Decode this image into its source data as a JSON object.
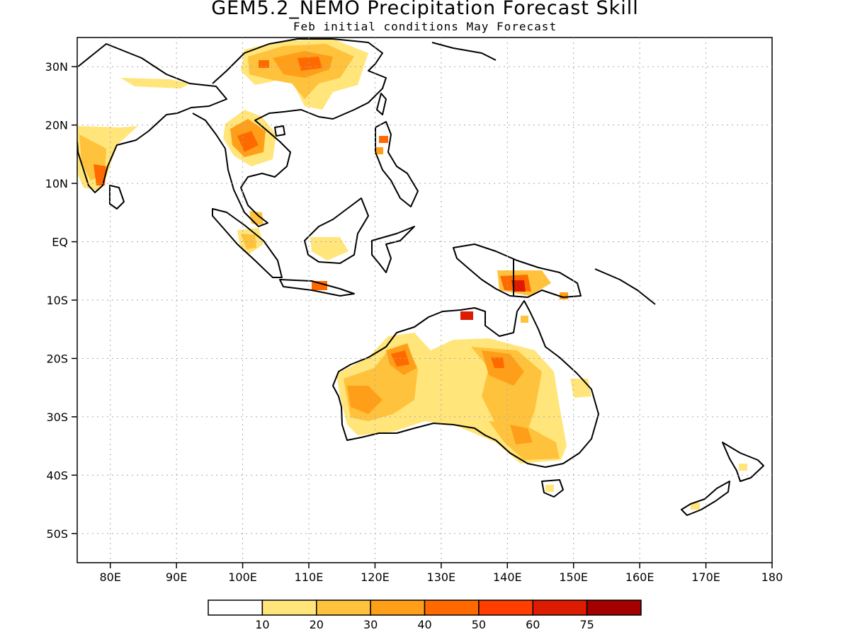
{
  "title": "GEM5.2_NEMO Precipitation Forecast Skill",
  "subtitle": "Feb initial conditions  May Forecast",
  "map": {
    "projection": "equirectangular",
    "lon_range": [
      75,
      180
    ],
    "lat_range": [
      -55,
      35
    ],
    "lon_ticks": [
      "80E",
      "90E",
      "100E",
      "110E",
      "120E",
      "130E",
      "140E",
      "150E",
      "160E",
      "170E",
      "180"
    ],
    "lat_ticks": [
      "30N",
      "20N",
      "10N",
      "EQ",
      "10S",
      "20S",
      "30S",
      "40S",
      "50S"
    ],
    "lon_tick_values": [
      80,
      90,
      100,
      110,
      120,
      130,
      140,
      150,
      160,
      170,
      180
    ],
    "lat_tick_values": [
      30,
      20,
      10,
      0,
      -10,
      -20,
      -30,
      -40,
      -50
    ],
    "grid": "dotted",
    "coastline_color": "#000000"
  },
  "colorbar": {
    "labels": [
      "10",
      "20",
      "30",
      "40",
      "50",
      "60",
      "75"
    ],
    "colors": [
      "#ffffff",
      "#ffe57a",
      "#ffc23c",
      "#ff9f19",
      "#ff6a00",
      "#ff3e00",
      "#dd1b00",
      "#a30000"
    ]
  }
}
